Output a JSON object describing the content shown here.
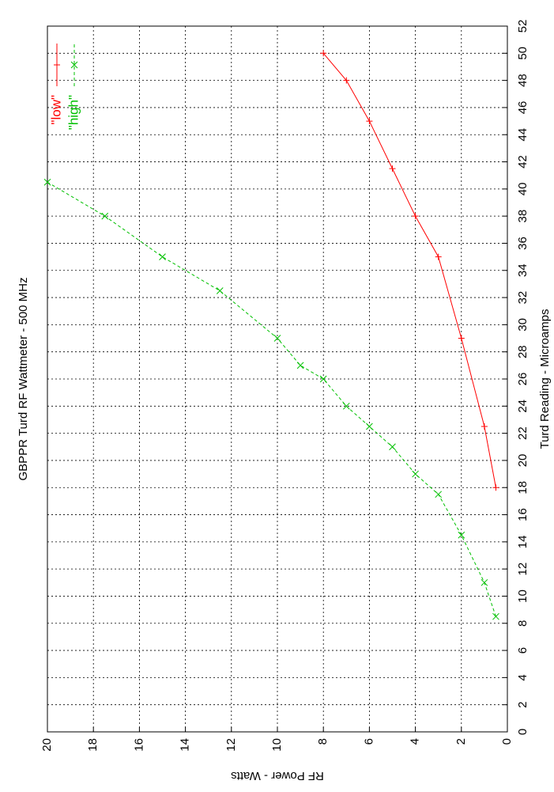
{
  "chart_data": {
    "type": "line",
    "title": "GBPPR Turd RF Wattmeter  -  500 MHz",
    "x_label": "Turd Reading  -  Microamps",
    "y_label": "RF Power  -  Watts",
    "xlim": [
      0,
      52
    ],
    "ylim": [
      0,
      20
    ],
    "xticks": [
      0,
      2,
      4,
      6,
      8,
      10,
      12,
      14,
      16,
      18,
      20,
      22,
      24,
      26,
      28,
      30,
      32,
      34,
      36,
      38,
      40,
      42,
      44,
      46,
      48,
      50,
      52
    ],
    "yticks": [
      0,
      2,
      4,
      6,
      8,
      10,
      12,
      14,
      16,
      18,
      20
    ],
    "grid": true,
    "legend": "top-right",
    "series": [
      {
        "name": "\"low\"",
        "color": "#ff0000",
        "marker": "plus",
        "dashed": false,
        "x": [
          18,
          22.5,
          29,
          35,
          38,
          41.5,
          45,
          48,
          50
        ],
        "values": [
          0.5,
          1,
          2,
          3,
          4,
          5,
          6,
          7,
          8
        ]
      },
      {
        "name": "\"high\"",
        "color": "#00c000",
        "marker": "cross",
        "dashed": true,
        "x": [
          8.5,
          11,
          14.5,
          17.5,
          19,
          21,
          22.5,
          24,
          26,
          27,
          29,
          32.5,
          35,
          38,
          40.5
        ],
        "values": [
          0.5,
          1,
          2,
          3,
          4,
          5,
          6,
          7,
          8,
          9,
          10,
          12.5,
          15,
          17.5,
          20
        ]
      }
    ]
  }
}
